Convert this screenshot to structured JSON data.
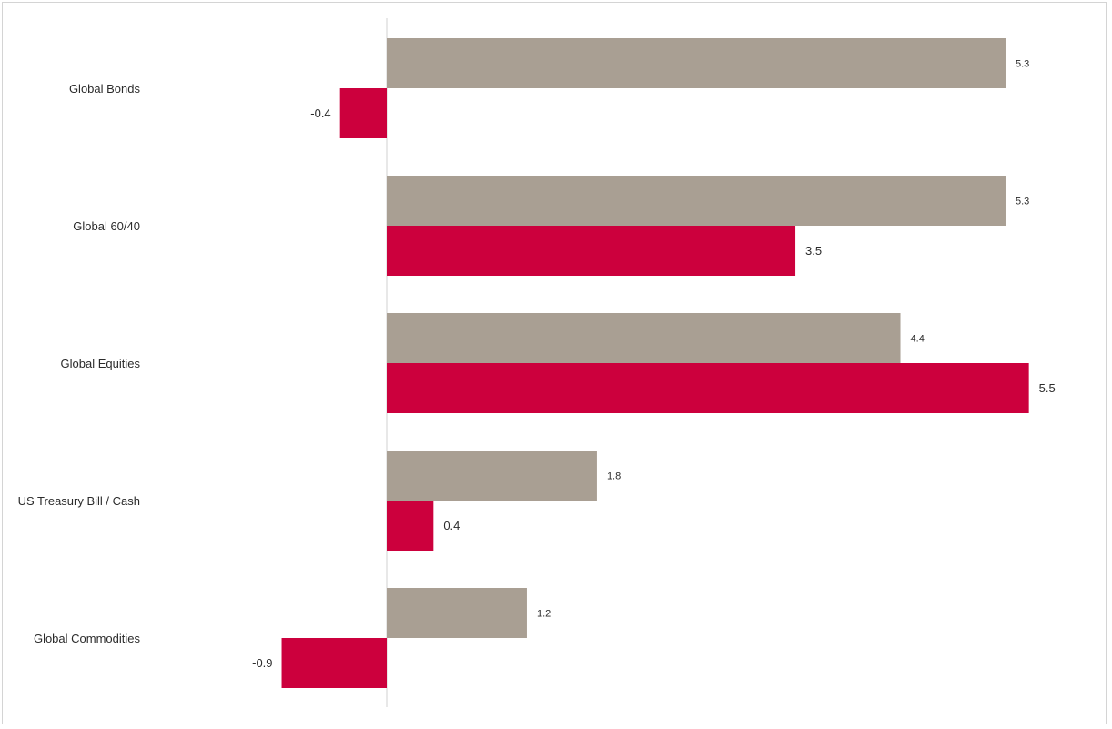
{
  "chart_data": {
    "type": "bar",
    "orientation": "horizontal",
    "categories": [
      "Global Bonds",
      "Global 60/40",
      "Global Equities",
      "US Treasury Bill / Cash",
      "Global Commodities"
    ],
    "series": [
      {
        "values": [
          5.3,
          5.3,
          4.4,
          1.8,
          1.2
        ],
        "color": "#a99f93",
        "labels": [
          "5.3",
          "5.3",
          "4.4",
          "1.8",
          "1.2"
        ]
      },
      {
        "values": [
          -0.4,
          3.5,
          5.5,
          0.4,
          -0.9
        ],
        "color": "#cc003d",
        "labels": [
          "-0.4",
          "3.5",
          "5.5",
          "0.4",
          "-0.9"
        ]
      }
    ],
    "xlim": [
      -3.3,
      6.0
    ],
    "grid": false,
    "legend": "none"
  }
}
